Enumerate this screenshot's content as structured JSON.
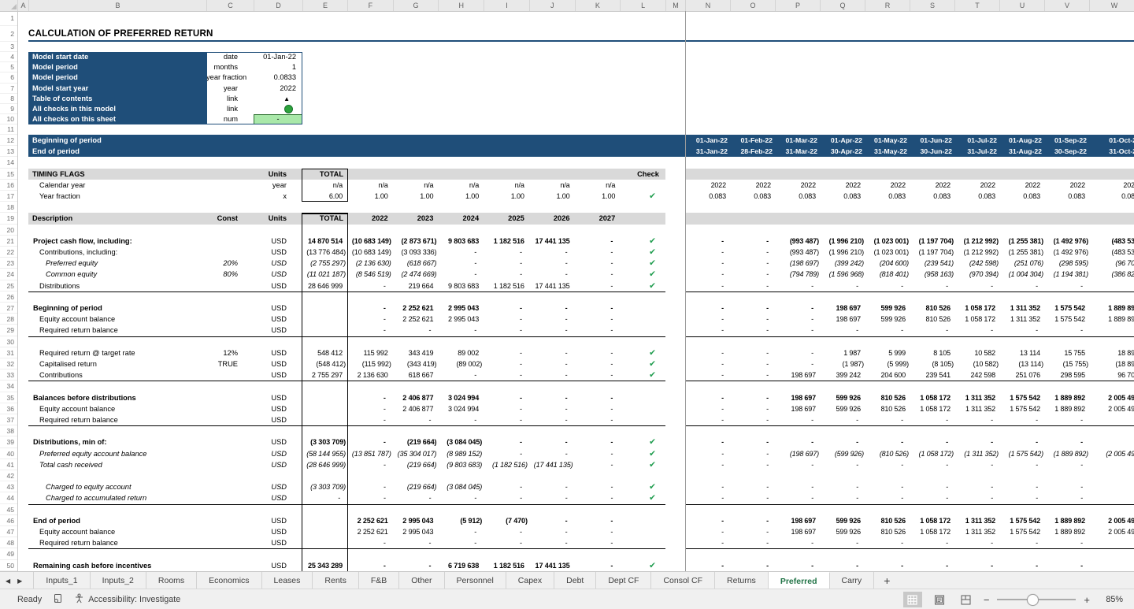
{
  "colors": {
    "navy": "#1F4E79",
    "band_gray": "#D9D9D9",
    "check_green": "#1E9C4D",
    "green_fill": "#A9E8A9",
    "green_fill_border": "#2E7031",
    "green_dot": "#2DA33C",
    "tab_active_green": "#217346"
  },
  "sheet": {
    "title": "CALCULATION OF PREFERRED RETURN",
    "col_headers": [
      "A",
      "B",
      "C",
      "D",
      "E",
      "F",
      "G",
      "H",
      "I",
      "J",
      "K",
      "L",
      "M",
      "N",
      "O",
      "P",
      "Q",
      "R",
      "S",
      "T",
      "U",
      "V",
      "W"
    ],
    "row_count": 50,
    "rows": [
      {
        "n": 4,
        "kind": "info",
        "b": "Model start date",
        "c": "date",
        "d": "01-Jan-22"
      },
      {
        "n": 5,
        "kind": "info",
        "b": "Model period",
        "c": "months",
        "d": "1"
      },
      {
        "n": 6,
        "kind": "info",
        "b": "Model period",
        "c": "year fraction",
        "d": "0.0833"
      },
      {
        "n": 7,
        "kind": "info",
        "b": "Model start year",
        "c": "year",
        "d": "2022"
      },
      {
        "n": 8,
        "kind": "info",
        "b": "Table of contents",
        "c": "link",
        "icon": "up-triangle"
      },
      {
        "n": 9,
        "kind": "info",
        "b": "All checks in this model",
        "c": "link",
        "icon": "green-dot"
      },
      {
        "n": 10,
        "kind": "info",
        "b": "All checks on this sheet",
        "c": "num",
        "d": "-",
        "fill": "green"
      },
      {
        "n": 12,
        "kind": "band",
        "b": "Beginning of period",
        "m": [
          "01-Jan-22",
          "01-Feb-22",
          "01-Mar-22",
          "01-Apr-22",
          "01-May-22",
          "01-Jun-22",
          "01-Jul-22",
          "01-Aug-22",
          "01-Sep-22",
          "01-Oct-2"
        ]
      },
      {
        "n": 13,
        "kind": "band",
        "b": "End of period",
        "m": [
          "31-Jan-22",
          "28-Feb-22",
          "31-Mar-22",
          "30-Apr-22",
          "31-May-22",
          "30-Jun-22",
          "31-Jul-22",
          "31-Aug-22",
          "30-Sep-22",
          "31-Oct-2"
        ]
      },
      {
        "n": 15,
        "kind": "head",
        "b": "TIMING FLAGS",
        "d": "Units",
        "e": "TOTAL",
        "l": "Check"
      },
      {
        "n": 16,
        "kind": "data",
        "ind": 1,
        "b": "Calendar year",
        "d": "year",
        "e": "n/a",
        "y": [
          "n/a",
          "n/a",
          "n/a",
          "n/a",
          "n/a",
          "n/a"
        ],
        "m": [
          "2022",
          "2022",
          "2022",
          "2022",
          "2022",
          "2022",
          "2022",
          "2022",
          "2022",
          "202"
        ]
      },
      {
        "n": 17,
        "kind": "data",
        "ind": 1,
        "b": "Year fraction",
        "d": "x",
        "e": "6.00",
        "y": [
          "1.00",
          "1.00",
          "1.00",
          "1.00",
          "1.00",
          "1.00"
        ],
        "check": true,
        "m": [
          "0.083",
          "0.083",
          "0.083",
          "0.083",
          "0.083",
          "0.083",
          "0.083",
          "0.083",
          "0.083",
          "0.08"
        ]
      },
      {
        "n": 19,
        "kind": "head",
        "b": "Description",
        "c": "Const",
        "d": "Units",
        "e": "TOTAL",
        "y": [
          "2022",
          "2023",
          "2024",
          "2025",
          "2026",
          "2027"
        ]
      },
      {
        "n": 21,
        "kind": "data",
        "bold": true,
        "b": "Project cash flow, including:",
        "d": "USD",
        "e": "14 870 514",
        "y": [
          "(10 683 149)",
          "(2 873 671)",
          "9 803 683",
          "1 182 516",
          "17 441 135",
          "-"
        ],
        "check": true,
        "m": [
          "-",
          "-",
          "(993 487)",
          "(1 996 210)",
          "(1 023 001)",
          "(1 197 704)",
          "(1 212 992)",
          "(1 255 381)",
          "(1 492 976)",
          "(483 53"
        ]
      },
      {
        "n": 22,
        "kind": "data",
        "ind": 1,
        "b": "Contributions, including:",
        "d": "USD",
        "e": "(13 776 484)",
        "y": [
          "(10 683 149)",
          "(3 093 336)",
          "-",
          "-",
          "-",
          "-"
        ],
        "check": true,
        "m": [
          "-",
          "-",
          "(993 487)",
          "(1 996 210)",
          "(1 023 001)",
          "(1 197 704)",
          "(1 212 992)",
          "(1 255 381)",
          "(1 492 976)",
          "(483 53"
        ]
      },
      {
        "n": 23,
        "kind": "data",
        "ind": 2,
        "italic": true,
        "b": "Preferred equity",
        "c": "20%",
        "d": "USD",
        "e": "(2 755 297)",
        "y": [
          "(2 136 630)",
          "(618 667)",
          "-",
          "-",
          "-",
          "-"
        ],
        "check": true,
        "m": [
          "-",
          "-",
          "(198 697)",
          "(399 242)",
          "(204 600)",
          "(239 541)",
          "(242 598)",
          "(251 076)",
          "(298 595)",
          "(96 70"
        ]
      },
      {
        "n": 24,
        "kind": "data",
        "ind": 2,
        "italic": true,
        "b": "Common equity",
        "c": "80%",
        "d": "USD",
        "e": "(11 021 187)",
        "y": [
          "(8 546 519)",
          "(2 474 669)",
          "-",
          "-",
          "-",
          "-"
        ],
        "check": true,
        "m": [
          "-",
          "-",
          "(794 789)",
          "(1 596 968)",
          "(818 401)",
          "(958 163)",
          "(970 394)",
          "(1 004 304)",
          "(1 194 381)",
          "(386 82"
        ]
      },
      {
        "n": 25,
        "kind": "data",
        "ind": 1,
        "b": "Distributions",
        "d": "USD",
        "e": "28 646 999",
        "y": [
          "-",
          "219 664",
          "9 803 683",
          "1 182 516",
          "17 441 135",
          "-"
        ],
        "check": true,
        "bb": true,
        "m": [
          "-",
          "-",
          "-",
          "-",
          "-",
          "-",
          "-",
          "-",
          "-",
          ""
        ]
      },
      {
        "n": 27,
        "kind": "data",
        "bold": true,
        "b": "Beginning of period",
        "d": "USD",
        "y": [
          "-",
          "2 252 621",
          "2 995 043",
          "-",
          "-",
          "-"
        ],
        "m": [
          "-",
          "-",
          "-",
          "198 697",
          "599 926",
          "810 526",
          "1 058 172",
          "1 311 352",
          "1 575 542",
          "1 889 89"
        ]
      },
      {
        "n": 28,
        "kind": "data",
        "ind": 1,
        "b": "Equity account balance",
        "d": "USD",
        "y": [
          "-",
          "2 252 621",
          "2 995 043",
          "-",
          "-",
          "-"
        ],
        "m": [
          "-",
          "-",
          "-",
          "198 697",
          "599 926",
          "810 526",
          "1 058 172",
          "1 311 352",
          "1 575 542",
          "1 889 89"
        ]
      },
      {
        "n": 29,
        "kind": "data",
        "ind": 1,
        "b": "Required return balance",
        "d": "USD",
        "y": [
          "-",
          "-",
          "-",
          "-",
          "-",
          "-"
        ],
        "bb": true,
        "m": [
          "-",
          "-",
          "-",
          "-",
          "-",
          "-",
          "-",
          "-",
          "-",
          ""
        ]
      },
      {
        "n": 31,
        "kind": "data",
        "ind": 1,
        "b": "Required return @ target rate",
        "c": "12%",
        "d": "USD",
        "e": "548 412",
        "y": [
          "115 992",
          "343 419",
          "89 002",
          "-",
          "-",
          "-"
        ],
        "check": true,
        "m": [
          "-",
          "-",
          "-",
          "1 987",
          "5 999",
          "8 105",
          "10 582",
          "13 114",
          "15 755",
          "18 89"
        ]
      },
      {
        "n": 32,
        "kind": "data",
        "ind": 1,
        "b": "Capitalised return",
        "c": "TRUE",
        "d": "USD",
        "e": "(548 412)",
        "y": [
          "(115 992)",
          "(343 419)",
          "(89 002)",
          "-",
          "-",
          "-"
        ],
        "check": true,
        "m": [
          "-",
          "-",
          "-",
          "(1 987)",
          "(5 999)",
          "(8 105)",
          "(10 582)",
          "(13 114)",
          "(15 755)",
          "(18 89"
        ]
      },
      {
        "n": 33,
        "kind": "data",
        "ind": 1,
        "b": "Contributions",
        "d": "USD",
        "e": "2 755 297",
        "y": [
          "2 136 630",
          "618 667",
          "-",
          "-",
          "-",
          "-"
        ],
        "check": true,
        "bb": true,
        "m": [
          "-",
          "-",
          "198 697",
          "399 242",
          "204 600",
          "239 541",
          "242 598",
          "251 076",
          "298 595",
          "96 70"
        ]
      },
      {
        "n": 35,
        "kind": "data",
        "bold": true,
        "b": "Balances before distributions",
        "d": "USD",
        "y": [
          "-",
          "2 406 877",
          "3 024 994",
          "-",
          "-",
          "-"
        ],
        "m": [
          "-",
          "-",
          "198 697",
          "599 926",
          "810 526",
          "1 058 172",
          "1 311 352",
          "1 575 542",
          "1 889 892",
          "2 005 49"
        ]
      },
      {
        "n": 36,
        "kind": "data",
        "ind": 1,
        "b": "Equity account balance",
        "d": "USD",
        "y": [
          "-",
          "2 406 877",
          "3 024 994",
          "-",
          "-",
          "-"
        ],
        "m": [
          "-",
          "-",
          "198 697",
          "599 926",
          "810 526",
          "1 058 172",
          "1 311 352",
          "1 575 542",
          "1 889 892",
          "2 005 49"
        ]
      },
      {
        "n": 37,
        "kind": "data",
        "ind": 1,
        "b": "Required return balance",
        "d": "USD",
        "y": [
          "-",
          "-",
          "-",
          "-",
          "-",
          "-"
        ],
        "bb": true,
        "m": [
          "-",
          "-",
          "-",
          "-",
          "-",
          "-",
          "-",
          "-",
          "-",
          ""
        ]
      },
      {
        "n": 39,
        "kind": "data",
        "bold": true,
        "b": "Distributions, min of:",
        "d": "USD",
        "e": "(3 303 709)",
        "y": [
          "-",
          "(219 664)",
          "(3 084 045)",
          "-",
          "-",
          "-"
        ],
        "check": true,
        "m": [
          "-",
          "-",
          "-",
          "-",
          "-",
          "-",
          "-",
          "-",
          "-",
          ""
        ]
      },
      {
        "n": 40,
        "kind": "data",
        "ind": 1,
        "italic": true,
        "b": "Preferred equity account balance",
        "d": "USD",
        "e": "(58 144 955)",
        "y": [
          "(13 851 787)",
          "(35 304 017)",
          "(8 989 152)",
          "-",
          "-",
          "-"
        ],
        "check": true,
        "m": [
          "-",
          "-",
          "(198 697)",
          "(599 926)",
          "(810 526)",
          "(1 058 172)",
          "(1 311 352)",
          "(1 575 542)",
          "(1 889 892)",
          "(2 005 49"
        ]
      },
      {
        "n": 41,
        "kind": "data",
        "ind": 1,
        "italic": true,
        "b": "Total cash received",
        "d": "USD",
        "e": "(28 646 999)",
        "y": [
          "-",
          "(219 664)",
          "(9 803 683)",
          "(1 182 516)",
          "(17 441 135)",
          "-"
        ],
        "check": true,
        "m": [
          "-",
          "-",
          "-",
          "-",
          "-",
          "-",
          "-",
          "-",
          "-",
          ""
        ]
      },
      {
        "n": 43,
        "kind": "data",
        "ind": 2,
        "italic": true,
        "b": "Charged to equity account",
        "d": "USD",
        "e": "(3 303 709)",
        "y": [
          "-",
          "(219 664)",
          "(3 084 045)",
          "-",
          "-",
          "-"
        ],
        "check": true,
        "m": [
          "-",
          "-",
          "-",
          "-",
          "-",
          "-",
          "-",
          "-",
          "-",
          ""
        ]
      },
      {
        "n": 44,
        "kind": "data",
        "ind": 2,
        "italic": true,
        "b": "Charged to accumulated return",
        "d": "USD",
        "e": "-",
        "y": [
          "-",
          "-",
          "-",
          "-",
          "-",
          "-"
        ],
        "check": true,
        "bb": true,
        "m": [
          "-",
          "-",
          "-",
          "-",
          "-",
          "-",
          "-",
          "-",
          "-",
          ""
        ]
      },
      {
        "n": 46,
        "kind": "data",
        "bold": true,
        "b": "End of period",
        "d": "USD",
        "y": [
          "2 252 621",
          "2 995 043",
          "(5 912)",
          "(7 470)",
          "-",
          "-"
        ],
        "m": [
          "-",
          "-",
          "198 697",
          "599 926",
          "810 526",
          "1 058 172",
          "1 311 352",
          "1 575 542",
          "1 889 892",
          "2 005 49"
        ]
      },
      {
        "n": 47,
        "kind": "data",
        "ind": 1,
        "b": "Equity account balance",
        "d": "USD",
        "y": [
          "2 252 621",
          "2 995 043",
          "-",
          "-",
          "-",
          "-"
        ],
        "m": [
          "-",
          "-",
          "198 697",
          "599 926",
          "810 526",
          "1 058 172",
          "1 311 352",
          "1 575 542",
          "1 889 892",
          "2 005 49"
        ]
      },
      {
        "n": 48,
        "kind": "data",
        "ind": 1,
        "b": "Required return balance",
        "d": "USD",
        "y": [
          "-",
          "-",
          "-",
          "-",
          "-",
          "-"
        ],
        "bb": true,
        "m": [
          "-",
          "-",
          "-",
          "-",
          "-",
          "-",
          "-",
          "-",
          "-",
          ""
        ]
      },
      {
        "n": 50,
        "kind": "data",
        "bold": true,
        "b": "Remaining cash before incentives",
        "d": "USD",
        "e": "25 343 289",
        "y": [
          "-",
          "-",
          "6 719 638",
          "1 182 516",
          "17 441 135",
          "-"
        ],
        "check": true,
        "m": [
          "-",
          "-",
          "-",
          "-",
          "-",
          "-",
          "-",
          "-",
          "-",
          ""
        ]
      }
    ]
  },
  "tabs": {
    "nav_prev": "◀",
    "nav_next": "▶",
    "add": "+",
    "active": "Preferred",
    "items": [
      "Inputs_1",
      "Inputs_2",
      "Rooms",
      "Economics",
      "Leases",
      "Rents",
      "F&B",
      "Other",
      "Personnel",
      "Capex",
      "Debt",
      "Dept CF",
      "Consol CF",
      "Returns",
      "Preferred",
      "Carry"
    ]
  },
  "status": {
    "ready": "Ready",
    "accessibility": "Accessibility: Investigate",
    "zoom": "85%"
  }
}
